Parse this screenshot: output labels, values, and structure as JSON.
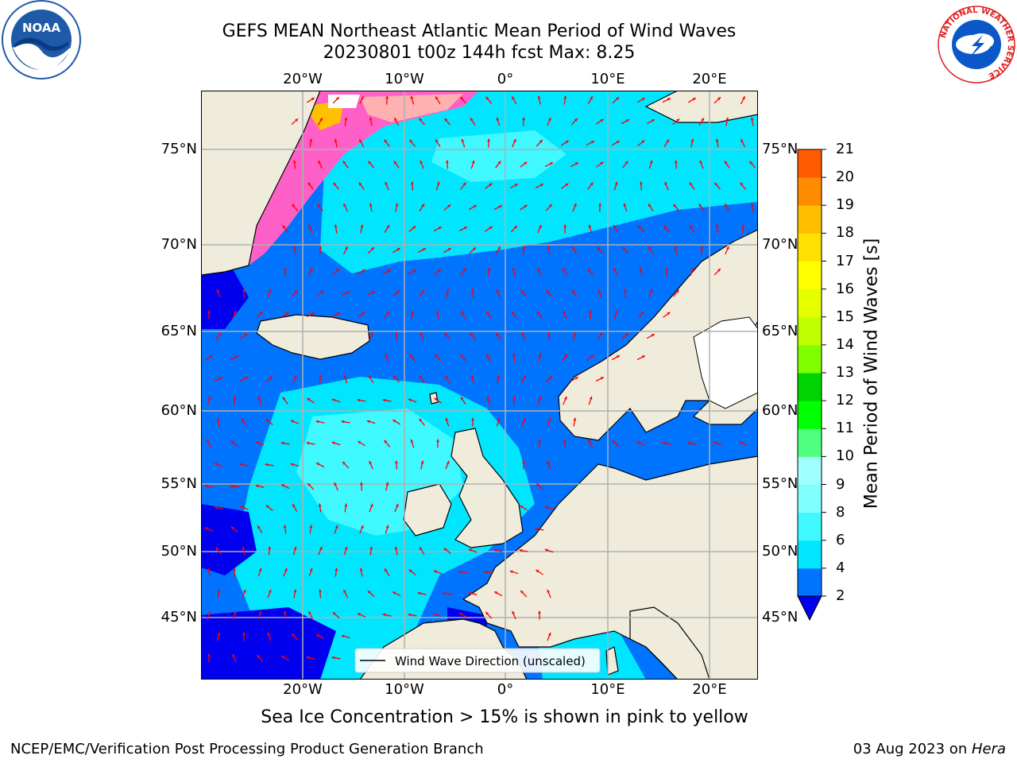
{
  "title": {
    "line1": "GEFS MEAN Northeast Atlantic Mean Period of Wind Waves",
    "line2": "20230801 t00z 144h fcst   Max: 8.25"
  },
  "map": {
    "lon_ticks": [
      "20°W",
      "10°W",
      "0°",
      "10°E",
      "20°E"
    ],
    "lat_ticks": [
      "75°N",
      "70°N",
      "65°N",
      "60°N",
      "55°N",
      "50°N",
      "45°N"
    ],
    "legend_label": "Wind Wave Direction (unscaled)",
    "arrow_color": "#ff0000",
    "land_color": "#efecdc",
    "ice_note": "Sea Ice Concentration > 15% is shown in pink to yellow"
  },
  "colorbar": {
    "label": "Mean Period of Wind Waves [s]",
    "ticks": [
      "2",
      "4",
      "6",
      "8",
      "9",
      "10",
      "11",
      "12",
      "13",
      "14",
      "15",
      "16",
      "17",
      "18",
      "19",
      "20",
      "21"
    ],
    "colors": [
      "#0073ff",
      "#00e6ff",
      "#40f8ff",
      "#80ffff",
      "#a0ffff",
      "#50ff80",
      "#00ff00",
      "#00d400",
      "#80ff00",
      "#c0ff00",
      "#e6ff00",
      "#ffff00",
      "#ffe000",
      "#ffbf00",
      "#ff8c00",
      "#ff5a00",
      "#ff2a00",
      "#ff0000"
    ]
  },
  "logos": {
    "noaa_text": "NOAA",
    "nws_ring_text": "NATIONAL WEATHER SERVICE"
  },
  "footer": {
    "left": "NCEP/EMC/Verification Post Processing Product Generation Branch",
    "right_prefix": "03 Aug 2023 on ",
    "right_host": "Hera"
  }
}
